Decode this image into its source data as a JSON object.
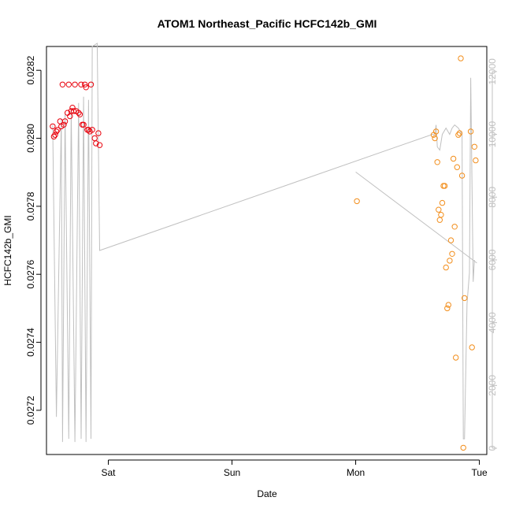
{
  "chart_data": {
    "type": "scatter",
    "title": "ATOM1 Northeast_Pacific HCFC142b_GMI",
    "xlabel": "Date",
    "ylabel": "HCFC142b_GMI",
    "y2label": "",
    "x_ticks": [
      {
        "label": "Sat",
        "value": 1.0
      },
      {
        "label": "Sun",
        "value": 2.0
      },
      {
        "label": "Mon",
        "value": 3.0
      },
      {
        "label": "Tue",
        "value": 4.0
      }
    ],
    "xlim": [
      0.5,
      4.06
    ],
    "ylim": [
      0.02707,
      0.02827
    ],
    "y_ticks": [
      "0.0272",
      "0.0274",
      "0.0276",
      "0.0278",
      "0.0280",
      "0.0282"
    ],
    "y_tick_values": [
      0.0272,
      0.0274,
      0.0276,
      0.0278,
      0.028,
      0.0282
    ],
    "y2lim": [
      -200,
      12800
    ],
    "y2_ticks": [
      "0",
      "2000",
      "4000",
      "6000",
      "8000",
      "10000",
      "12000"
    ],
    "y2_tick_values": [
      0,
      2000,
      4000,
      6000,
      8000,
      10000,
      12000
    ],
    "grid": false,
    "legend": "none",
    "colors": {
      "series_red": "#e8000b",
      "series_orange": "#f28e1c",
      "altitude": "#c0c0c0",
      "axis_right": "#c0c0c0"
    },
    "series": [
      {
        "color": "#e8000b",
        "points": [
          [
            0.55,
            0.028035
          ],
          [
            0.56,
            0.028005
          ],
          [
            0.57,
            0.02801
          ],
          [
            0.58,
            0.02802
          ],
          [
            0.59,
            0.028025
          ],
          [
            0.61,
            0.02805
          ],
          [
            0.62,
            0.028035
          ],
          [
            0.63,
            0.028158
          ],
          [
            0.64,
            0.02804
          ],
          [
            0.65,
            0.02805
          ],
          [
            0.67,
            0.028075
          ],
          [
            0.68,
            0.028158
          ],
          [
            0.69,
            0.028065
          ],
          [
            0.7,
            0.02808
          ],
          [
            0.71,
            0.02809
          ],
          [
            0.72,
            0.02808
          ],
          [
            0.73,
            0.028158
          ],
          [
            0.74,
            0.02808
          ],
          [
            0.76,
            0.028075
          ],
          [
            0.77,
            0.02807
          ],
          [
            0.78,
            0.028158
          ],
          [
            0.79,
            0.02804
          ],
          [
            0.8,
            0.02804
          ],
          [
            0.81,
            0.028158
          ],
          [
            0.82,
            0.02815
          ],
          [
            0.83,
            0.028025
          ],
          [
            0.84,
            0.028025
          ],
          [
            0.85,
            0.02802
          ],
          [
            0.86,
            0.028158
          ],
          [
            0.87,
            0.028025
          ],
          [
            0.89,
            0.028
          ],
          [
            0.9,
            0.027985
          ],
          [
            0.92,
            0.028015
          ],
          [
            0.93,
            0.02798
          ]
        ]
      },
      {
        "color": "#f28e1c",
        "points": [
          [
            3.01,
            0.027815
          ],
          [
            3.63,
            0.02801
          ],
          [
            3.64,
            0.028
          ],
          [
            3.65,
            0.02802
          ],
          [
            3.66,
            0.02793
          ],
          [
            3.67,
            0.02779
          ],
          [
            3.68,
            0.02776
          ],
          [
            3.69,
            0.027775
          ],
          [
            3.7,
            0.02781
          ],
          [
            3.71,
            0.02786
          ],
          [
            3.72,
            0.02786
          ],
          [
            3.73,
            0.02762
          ],
          [
            3.74,
            0.0275
          ],
          [
            3.75,
            0.02751
          ],
          [
            3.76,
            0.02764
          ],
          [
            3.77,
            0.0277
          ],
          [
            3.78,
            0.02766
          ],
          [
            3.79,
            0.02794
          ],
          [
            3.8,
            0.02774
          ],
          [
            3.81,
            0.027355
          ],
          [
            3.82,
            0.027915
          ],
          [
            3.83,
            0.02801
          ],
          [
            3.84,
            0.028015
          ],
          [
            3.85,
            0.028235
          ],
          [
            3.86,
            0.02789
          ],
          [
            3.87,
            0.02709
          ],
          [
            3.88,
            0.02753
          ],
          [
            3.93,
            0.02802
          ],
          [
            3.94,
            0.027385
          ],
          [
            3.96,
            0.027975
          ],
          [
            3.97,
            0.027935
          ]
        ]
      }
    ],
    "altitude_segments": [
      [
        [
          0.55,
          10300
        ],
        [
          0.58,
          1000
        ],
        [
          0.62,
          10500
        ],
        [
          0.63,
          200
        ],
        [
          0.65,
          10700
        ],
        [
          0.68,
          300
        ],
        [
          0.7,
          10800
        ],
        [
          0.73,
          200
        ],
        [
          0.76,
          11000
        ],
        [
          0.78,
          300
        ],
        [
          0.8,
          11200
        ],
        [
          0.82,
          200
        ],
        [
          0.84,
          11100
        ],
        [
          0.86,
          300
        ],
        [
          0.87,
          12800
        ],
        [
          0.91,
          12900
        ],
        [
          0.93,
          6300
        ],
        [
          3.62,
          10000
        ],
        [
          3.64,
          10000
        ],
        [
          3.65,
          10300
        ],
        [
          3.66,
          9600
        ],
        [
          3.68,
          9500
        ],
        [
          3.7,
          10000
        ],
        [
          3.73,
          10200
        ],
        [
          3.76,
          10000
        ],
        [
          3.78,
          10200
        ],
        [
          3.8,
          10300
        ],
        [
          3.83,
          10200
        ],
        [
          3.86,
          10000
        ],
        [
          3.87,
          300
        ],
        [
          3.88,
          300
        ],
        [
          3.9,
          4600
        ],
        [
          3.92,
          5600
        ],
        [
          3.93,
          11800
        ],
        [
          3.95,
          5300
        ],
        [
          3.96,
          6000
        ]
      ],
      [
        [
          3.0,
          8800
        ],
        [
          3.98,
          5900
        ]
      ]
    ]
  }
}
